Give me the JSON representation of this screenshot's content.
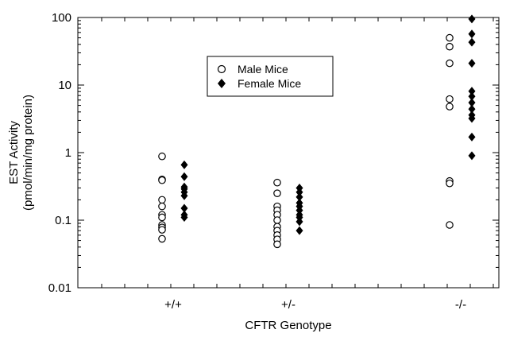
{
  "chart_data": {
    "type": "scatter",
    "title": "",
    "xlabel": "CFTR Genotype",
    "ylabel_line1": "EST Activity",
    "ylabel_line2": "(pmol/min/mg protein)",
    "yscale": "log",
    "ylim": [
      0.01,
      100
    ],
    "y_ticks": [
      0.01,
      0.1,
      1,
      10,
      100
    ],
    "y_tick_labels": [
      "0.01",
      "0.1",
      "1",
      "10",
      "100"
    ],
    "categories": [
      "+/+",
      "+/-",
      "-/-"
    ],
    "grid": false,
    "legend_position": "top-center",
    "series": [
      {
        "name": "Male Mice",
        "marker": "open-circle",
        "color": "#000000",
        "points": [
          {
            "x": "+/+",
            "y": 0.88
          },
          {
            "x": "+/+",
            "y": 0.4
          },
          {
            "x": "+/+",
            "y": 0.39
          },
          {
            "x": "+/+",
            "y": 0.2
          },
          {
            "x": "+/+",
            "y": 0.16
          },
          {
            "x": "+/+",
            "y": 0.12
          },
          {
            "x": "+/+",
            "y": 0.11
          },
          {
            "x": "+/+",
            "y": 0.085
          },
          {
            "x": "+/+",
            "y": 0.078
          },
          {
            "x": "+/+",
            "y": 0.072
          },
          {
            "x": "+/+",
            "y": 0.053
          },
          {
            "x": "+/-",
            "y": 0.36
          },
          {
            "x": "+/-",
            "y": 0.25
          },
          {
            "x": "+/-",
            "y": 0.16
          },
          {
            "x": "+/-",
            "y": 0.14
          },
          {
            "x": "+/-",
            "y": 0.12
          },
          {
            "x": "+/-",
            "y": 0.1
          },
          {
            "x": "+/-",
            "y": 0.08
          },
          {
            "x": "+/-",
            "y": 0.07
          },
          {
            "x": "+/-",
            "y": 0.06
          },
          {
            "x": "+/-",
            "y": 0.052
          },
          {
            "x": "+/-",
            "y": 0.044
          },
          {
            "x": "-/-",
            "y": 50
          },
          {
            "x": "-/-",
            "y": 37
          },
          {
            "x": "-/-",
            "y": 21
          },
          {
            "x": "-/-",
            "y": 6.2
          },
          {
            "x": "-/-",
            "y": 4.8
          },
          {
            "x": "-/-",
            "y": 0.38
          },
          {
            "x": "-/-",
            "y": 0.35
          },
          {
            "x": "-/-",
            "y": 0.085
          }
        ]
      },
      {
        "name": "Female Mice",
        "marker": "filled-diamond",
        "color": "#000000",
        "points": [
          {
            "x": "+/+",
            "y": 0.66
          },
          {
            "x": "+/+",
            "y": 0.44
          },
          {
            "x": "+/+",
            "y": 0.31
          },
          {
            "x": "+/+",
            "y": 0.29
          },
          {
            "x": "+/+",
            "y": 0.26
          },
          {
            "x": "+/+",
            "y": 0.23
          },
          {
            "x": "+/+",
            "y": 0.15
          },
          {
            "x": "+/+",
            "y": 0.12
          },
          {
            "x": "+/+",
            "y": 0.11
          },
          {
            "x": "+/-",
            "y": 0.3
          },
          {
            "x": "+/-",
            "y": 0.26
          },
          {
            "x": "+/-",
            "y": 0.22
          },
          {
            "x": "+/-",
            "y": 0.18
          },
          {
            "x": "+/-",
            "y": 0.16
          },
          {
            "x": "+/-",
            "y": 0.14
          },
          {
            "x": "+/-",
            "y": 0.12
          },
          {
            "x": "+/-",
            "y": 0.11
          },
          {
            "x": "+/-",
            "y": 0.095
          },
          {
            "x": "+/-",
            "y": 0.07
          },
          {
            "x": "-/-",
            "y": 95
          },
          {
            "x": "-/-",
            "y": 57
          },
          {
            "x": "-/-",
            "y": 43
          },
          {
            "x": "-/-",
            "y": 21
          },
          {
            "x": "-/-",
            "y": 8.1
          },
          {
            "x": "-/-",
            "y": 6.8
          },
          {
            "x": "-/-",
            "y": 5.5
          },
          {
            "x": "-/-",
            "y": 4.4
          },
          {
            "x": "-/-",
            "y": 3.6
          },
          {
            "x": "-/-",
            "y": 3.2
          },
          {
            "x": "-/-",
            "y": 1.7
          },
          {
            "x": "-/-",
            "y": 0.9
          }
        ]
      }
    ]
  }
}
